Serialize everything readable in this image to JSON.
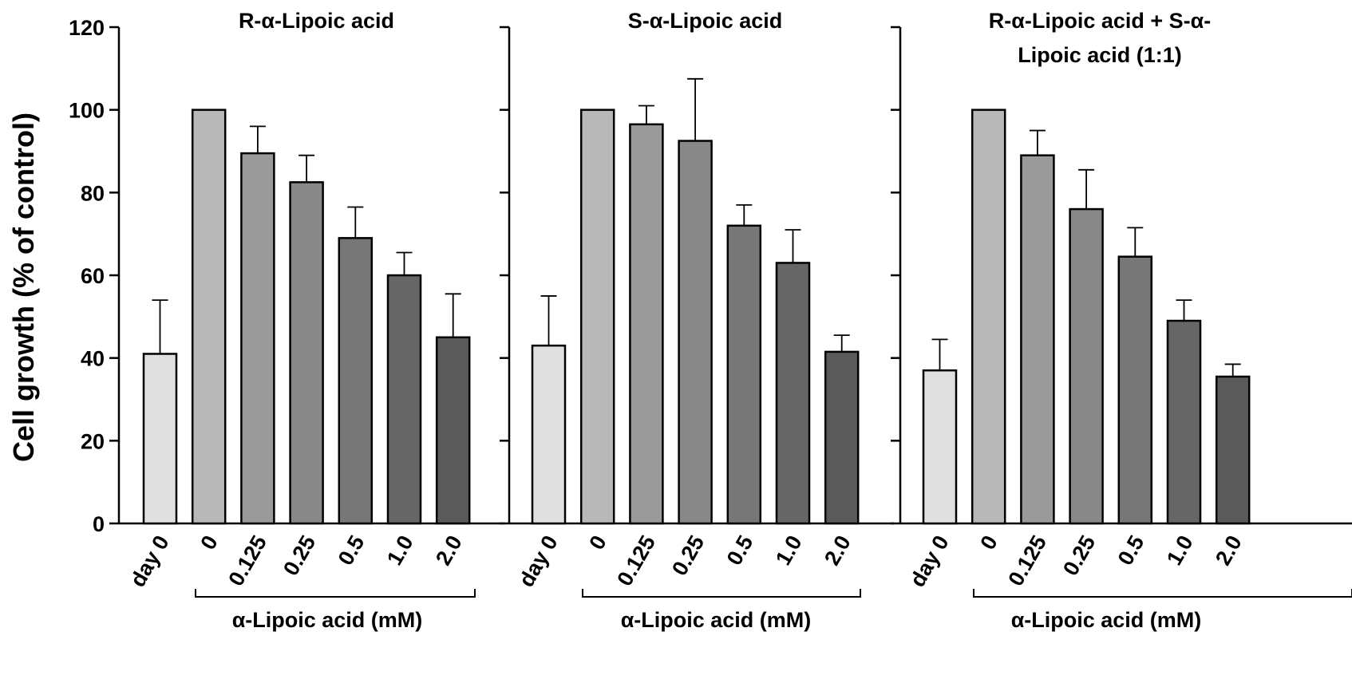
{
  "chart_data": {
    "type": "bar",
    "ylabel": "Cell growth (% of control)",
    "ylim": [
      0,
      120
    ],
    "yticks": [
      "0",
      "20",
      "40",
      "60",
      "80",
      "100",
      "120"
    ],
    "categories": [
      "day 0",
      "0",
      "0.125",
      "0.25",
      "0.5",
      "1.0",
      "2.0"
    ],
    "bar_colors": [
      "#e0e0e0",
      "#b8b8b8",
      "#9a9a9a",
      "#888888",
      "#777777",
      "#666666",
      "#5a5a5a"
    ],
    "grid": false,
    "legend": "none",
    "panels": [
      {
        "title": "R-α-Lipoic acid",
        "xlabel": "α-Lipoic acid (mM)",
        "values": [
          41,
          100,
          89.5,
          82.5,
          69,
          60,
          45
        ],
        "errors": [
          13,
          0,
          6.5,
          6.5,
          7.5,
          5.5,
          10.5
        ]
      },
      {
        "title": "S-α-Lipoic acid",
        "xlabel": "α-Lipoic acid (mM)",
        "values": [
          43,
          100,
          96.5,
          92.5,
          72,
          63,
          41.5
        ],
        "errors": [
          12,
          0,
          4.5,
          15,
          5,
          8,
          4
        ]
      },
      {
        "title": "R-α-Lipoic acid + S-α-Lipoic acid (1:1)",
        "title_lines": [
          "R-α-Lipoic acid + S-α-",
          "Lipoic acid (1:1)"
        ],
        "xlabel": "α-Lipoic acid (mM)",
        "values": [
          37,
          100,
          89,
          76,
          64.5,
          49,
          35.5
        ],
        "errors": [
          7.5,
          0,
          6,
          9.5,
          7,
          5,
          3
        ]
      }
    ]
  }
}
